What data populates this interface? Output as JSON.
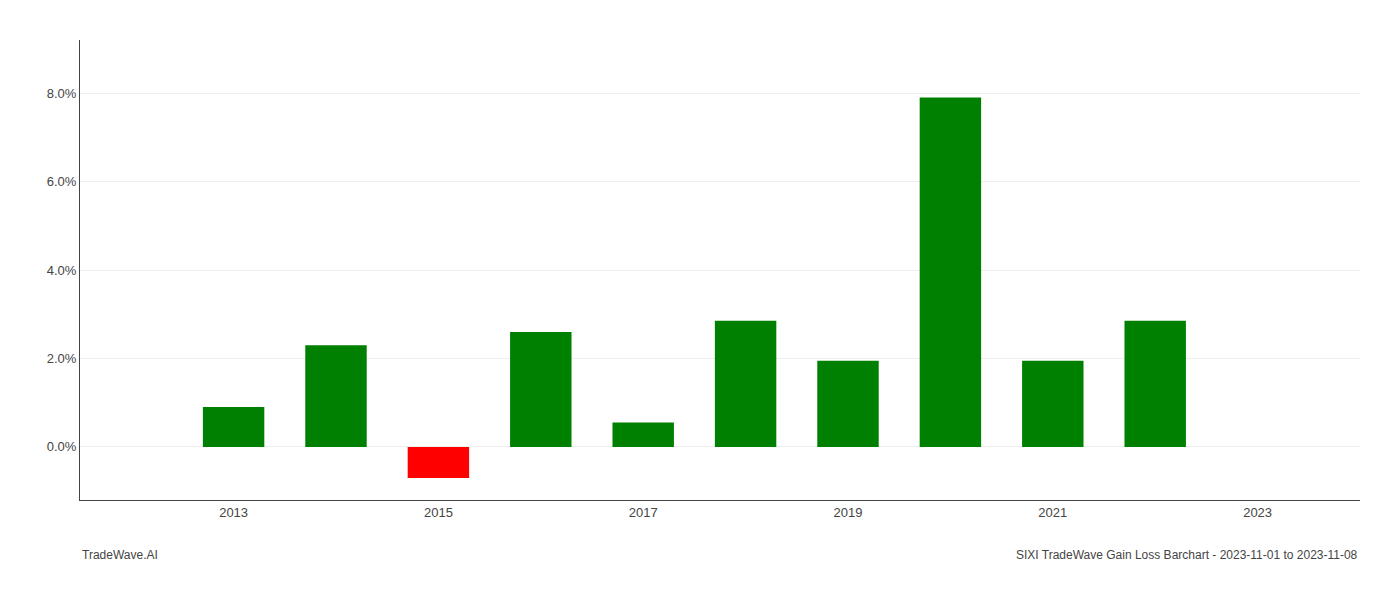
{
  "chart_data": {
    "type": "bar",
    "x": [
      2013,
      2014,
      2015,
      2016,
      2017,
      2018,
      2019,
      2020,
      2021,
      2022
    ],
    "values": [
      0.009,
      0.023,
      -0.007,
      0.026,
      0.0055,
      0.0285,
      0.0195,
      0.079,
      0.0195,
      0.0285
    ],
    "colors": [
      "#008000",
      "#008000",
      "#ff0000",
      "#008000",
      "#008000",
      "#008000",
      "#008000",
      "#008000",
      "#008000",
      "#008000"
    ],
    "xlim": [
      2011.5,
      2024.0
    ],
    "xticks": [
      2013,
      2015,
      2017,
      2019,
      2021,
      2023
    ],
    "ylim": [
      -0.012,
      0.092
    ],
    "yticks": [
      {
        "value": 0.0,
        "label": "0.0%"
      },
      {
        "value": 0.02,
        "label": "2.0%"
      },
      {
        "value": 0.04,
        "label": "4.0%"
      },
      {
        "value": 0.06,
        "label": "6.0%"
      },
      {
        "value": 0.08,
        "label": "8.0%"
      }
    ],
    "grid": true,
    "annotations": [
      "TradeWave.AI",
      "SIXI TradeWave Gain Loss Barchart - 2023-11-01 to 2023-11-08"
    ]
  }
}
